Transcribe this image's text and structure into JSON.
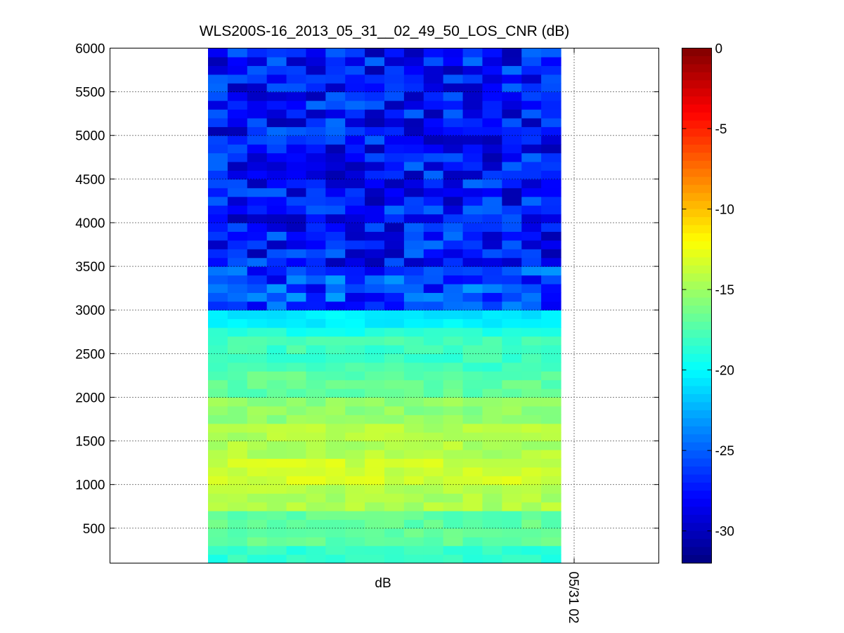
{
  "chart_data": {
    "type": "heatmap",
    "title": "WLS200S-16_2013_05_31__02_49_50_LOS_CNR (dB)",
    "xlabel": "dB",
    "ylabel": "",
    "x_tick_labels": [
      "05/31 02"
    ],
    "y_tick_labels": [
      "500",
      "1000",
      "1500",
      "2000",
      "2500",
      "3000",
      "3500",
      "4000",
      "4500",
      "5000",
      "5500",
      "6000"
    ],
    "y_ticks": [
      500,
      1000,
      1500,
      2000,
      2500,
      3000,
      3500,
      4000,
      4500,
      5000,
      5500,
      6000
    ],
    "ylim": [
      100,
      6000
    ],
    "grid": true,
    "colormap": "jet",
    "colorbar": {
      "clim": [
        -32,
        0
      ],
      "tick_values": [
        0,
        -5,
        -10,
        -15,
        -20,
        -25,
        -30
      ],
      "tick_labels": [
        "0",
        "-5",
        "-10",
        "-15",
        "-20",
        "-25",
        "-30"
      ],
      "placement": "right"
    },
    "n_columns": 18,
    "cnr_profile_db": [
      {
        "range": [
          100,
          300
        ],
        "cnr": -18.5
      },
      {
        "range": [
          300,
          700
        ],
        "cnr": -17.0
      },
      {
        "range": [
          700,
          1000
        ],
        "cnr": -14.5
      },
      {
        "range": [
          1000,
          1300
        ],
        "cnr": -13.5
      },
      {
        "range": [
          1300,
          1700
        ],
        "cnr": -14.5
      },
      {
        "range": [
          1700,
          2000
        ],
        "cnr": -15.5
      },
      {
        "range": [
          2000,
          2300
        ],
        "cnr": -17.0
      },
      {
        "range": [
          2300,
          2700
        ],
        "cnr": -18.0
      },
      {
        "range": [
          2700,
          2800
        ],
        "cnr": -19.0
      },
      {
        "range": [
          2800,
          3000
        ],
        "cnr": -20.5
      },
      {
        "range": [
          3000,
          3500
        ],
        "cnr": -26.0
      },
      {
        "range": [
          3500,
          6000
        ],
        "cnr": -27.5
      }
    ]
  },
  "colors": {
    "axes": "#000000",
    "grid": "#000000",
    "background": "#ffffff"
  }
}
